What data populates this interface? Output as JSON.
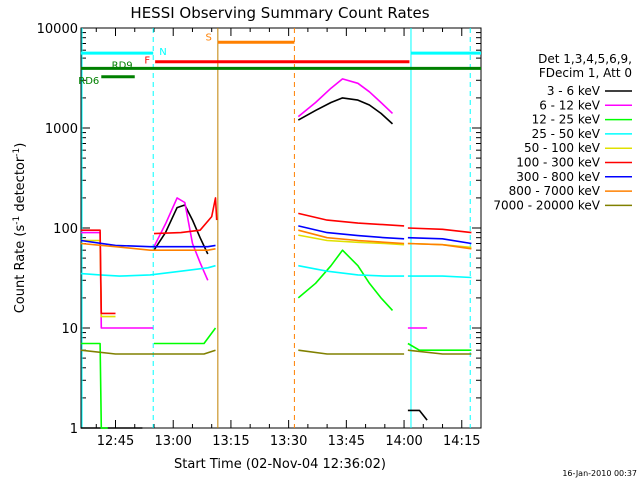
{
  "chart_data": {
    "type": "line",
    "title": "HESSI Observing Summary Count Rates",
    "xlabel": "Start Time (02-Nov-04 12:36:02)",
    "ylabel_parts": [
      "Count Rate (s",
      "-1",
      " detector",
      "-1",
      ")"
    ],
    "log_y": true,
    "ylim": [
      1,
      10000
    ],
    "xlim_min": [
      36.03,
      140.0
    ],
    "x_ticks": [
      {
        "v": 45,
        "label": "12:45"
      },
      {
        "v": 60,
        "label": "13:00"
      },
      {
        "v": 75,
        "label": "13:15"
      },
      {
        "v": 90,
        "label": "13:30"
      },
      {
        "v": 105,
        "label": "13:45"
      },
      {
        "v": 120,
        "label": "14:00"
      },
      {
        "v": 135,
        "label": "14:15"
      }
    ],
    "y_ticks": [
      {
        "v": 1,
        "label": "1"
      },
      {
        "v": 10,
        "label": "10"
      },
      {
        "v": 100,
        "label": "100"
      },
      {
        "v": 1000,
        "label": "1000"
      },
      {
        "v": 10000,
        "label": "10000"
      }
    ],
    "legend_header": [
      "Det 1,3,4,5,6,9,",
      "FDecim 1, Att 0"
    ],
    "legend_placement": "right",
    "footer": "16-Jan-2010 00:37",
    "flag_bars": [
      {
        "label": "N",
        "color": "#00ffff",
        "segments": [
          [
            36.0,
            54.8
          ],
          [
            121.8,
            140.0
          ]
        ],
        "y": 5600
      },
      {
        "label": "S",
        "color": "#ff8000",
        "segments": [
          [
            71.6,
            91.5
          ]
        ],
        "y": 7200
      },
      {
        "label": "F",
        "color": "#ff0000",
        "segments": [
          [
            55.3,
            121.4
          ]
        ],
        "y": 4600
      },
      {
        "label": "RD9",
        "color": "#008000",
        "segments": [
          [
            36.0,
            140.0
          ]
        ],
        "y": 3950
      },
      {
        "label": "RD6",
        "color": "#008000",
        "segments": [
          [
            41.3,
            50.0
          ]
        ],
        "y": 3250
      }
    ],
    "vlines": [
      {
        "x": 36.3,
        "color": "#00ffff",
        "style": "solid"
      },
      {
        "x": 54.8,
        "color": "#00ffff",
        "style": "dashed"
      },
      {
        "x": 71.6,
        "color": "#c08000",
        "style": "solid"
      },
      {
        "x": 91.5,
        "color": "#ff8000",
        "style": "dashed"
      },
      {
        "x": 121.8,
        "color": "#00ffff",
        "style": "solid"
      },
      {
        "x": 137.2,
        "color": "#00ffff",
        "style": "dashed"
      }
    ],
    "series": [
      {
        "name": "3 - 6 keV",
        "color": "#000000",
        "segments": [
          [
            [
              36,
              1
            ],
            [
              41,
              1
            ],
            [
              46,
              1
            ],
            [
              52,
              1
            ]
          ],
          [
            [
              55,
              60
            ],
            [
              58,
              90
            ],
            [
              61,
              160
            ],
            [
              63,
              170
            ],
            [
              65,
              120
            ],
            [
              67,
              80
            ],
            [
              69,
              55
            ]
          ],
          [
            [
              92.5,
              1200
            ],
            [
              97,
              1500
            ],
            [
              101,
              1800
            ],
            [
              104,
              2000
            ],
            [
              108,
              1900
            ],
            [
              111,
              1700
            ],
            [
              114,
              1400
            ],
            [
              117,
              1100
            ]
          ],
          [
            [
              121,
              1.5
            ],
            [
              124,
              1.5
            ],
            [
              126,
              1.2
            ]
          ]
        ]
      },
      {
        "name": "6 - 12 keV",
        "color": "#ff00ff",
        "segments": [
          [
            [
              36,
              90
            ],
            [
              41,
              90
            ],
            [
              41.3,
              10
            ],
            [
              54.8,
              10
            ]
          ],
          [
            [
              55,
              65
            ],
            [
              58,
              110
            ],
            [
              61,
              200
            ],
            [
              63,
              180
            ],
            [
              65,
              70
            ],
            [
              67,
              45
            ],
            [
              69,
              30
            ]
          ],
          [
            [
              92.5,
              1300
            ],
            [
              97,
              1800
            ],
            [
              101,
              2500
            ],
            [
              104,
              3100
            ],
            [
              108,
              2800
            ],
            [
              111,
              2300
            ],
            [
              114,
              1800
            ],
            [
              117,
              1400
            ]
          ],
          [
            [
              121,
              10
            ],
            [
              124,
              10
            ],
            [
              126,
              10
            ]
          ]
        ]
      },
      {
        "name": "12 - 25 keV",
        "color": "#00ff00",
        "segments": [
          [
            [
              36,
              7
            ],
            [
              41,
              7
            ],
            [
              41.3,
              1
            ],
            [
              43,
              1
            ]
          ],
          [
            [
              55,
              7
            ],
            [
              62,
              7
            ],
            [
              68,
              7
            ],
            [
              71,
              10
            ]
          ],
          [
            [
              92.5,
              20
            ],
            [
              97,
              28
            ],
            [
              101,
              42
            ],
            [
              104,
              60
            ],
            [
              108,
              42
            ],
            [
              111,
              28
            ],
            [
              114,
              20
            ],
            [
              117,
              15
            ]
          ],
          [
            [
              121,
              7
            ],
            [
              124,
              6
            ],
            [
              130,
              6
            ],
            [
              137.5,
              6
            ]
          ]
        ]
      },
      {
        "name": "25 - 50 keV",
        "color": "#00ffff",
        "segments": [
          [
            [
              36,
              35
            ],
            [
              41,
              34
            ],
            [
              46,
              33
            ],
            [
              54,
              34
            ],
            [
              62,
              37
            ],
            [
              69,
              40
            ],
            [
              71,
              42
            ]
          ],
          [
            [
              92.5,
              42
            ],
            [
              100,
              37
            ],
            [
              108,
              34
            ],
            [
              115,
              33
            ],
            [
              120,
              33
            ]
          ],
          [
            [
              121,
              33
            ],
            [
              130,
              33
            ],
            [
              137.5,
              32
            ]
          ]
        ]
      },
      {
        "name": "50 - 100 keV",
        "color": "#e0e000",
        "segments": [
          [
            [
              36,
              75
            ],
            [
              41,
              75
            ],
            [
              41.3,
              13
            ],
            [
              45,
              13
            ]
          ],
          [
            [
              92.5,
              85
            ],
            [
              100,
              75
            ],
            [
              108,
              72
            ],
            [
              115,
              70
            ],
            [
              120,
              68
            ]
          ],
          [
            [
              121,
              70
            ],
            [
              130,
              68
            ],
            [
              137.5,
              64
            ]
          ]
        ]
      },
      {
        "name": "100 - 300 keV",
        "color": "#ff0000",
        "segments": [
          [
            [
              36,
              95
            ],
            [
              41,
              95
            ],
            [
              41.3,
              14
            ],
            [
              45,
              14
            ]
          ],
          [
            [
              55,
              88
            ],
            [
              62,
              90
            ],
            [
              67,
              95
            ],
            [
              70,
              130
            ],
            [
              71,
              200
            ],
            [
              71.3,
              120
            ]
          ],
          [
            [
              92.5,
              140
            ],
            [
              100,
              120
            ],
            [
              108,
              112
            ],
            [
              115,
              108
            ],
            [
              120,
              105
            ]
          ],
          [
            [
              121,
              100
            ],
            [
              130,
              97
            ],
            [
              137.5,
              90
            ]
          ]
        ]
      },
      {
        "name": "300 - 800 keV",
        "color": "#0000ff",
        "segments": [
          [
            [
              36,
              75
            ],
            [
              45,
              67
            ],
            [
              54,
              65
            ],
            [
              62,
              65
            ],
            [
              69,
              65
            ],
            [
              71,
              67
            ]
          ],
          [
            [
              92.5,
              105
            ],
            [
              100,
              90
            ],
            [
              108,
              84
            ],
            [
              115,
              80
            ],
            [
              120,
              78
            ]
          ],
          [
            [
              121,
              80
            ],
            [
              130,
              78
            ],
            [
              137.5,
              70
            ]
          ]
        ]
      },
      {
        "name": "800 - 7000 keV",
        "color": "#ff8000",
        "segments": [
          [
            [
              36,
              70
            ],
            [
              45,
              65
            ],
            [
              54,
              60
            ],
            [
              62,
              60
            ],
            [
              69,
              60
            ],
            [
              71,
              62
            ]
          ],
          [
            [
              92.5,
              95
            ],
            [
              100,
              80
            ],
            [
              108,
              75
            ],
            [
              115,
              72
            ],
            [
              120,
              70
            ]
          ],
          [
            [
              121,
              70
            ],
            [
              130,
              68
            ],
            [
              137.5,
              62
            ]
          ]
        ]
      },
      {
        "name": "7000 - 20000 keV",
        "color": "#808000",
        "segments": [
          [
            [
              36,
              6
            ],
            [
              45,
              5.5
            ],
            [
              54,
              5.5
            ],
            [
              62,
              5.5
            ],
            [
              68,
              5.5
            ],
            [
              71,
              6
            ]
          ],
          [
            [
              92.5,
              6
            ],
            [
              100,
              5.5
            ],
            [
              108,
              5.5
            ],
            [
              115,
              5.5
            ],
            [
              120,
              5.5
            ]
          ],
          [
            [
              121,
              6
            ],
            [
              130,
              5.5
            ],
            [
              137.5,
              5.5
            ]
          ]
        ]
      }
    ]
  }
}
